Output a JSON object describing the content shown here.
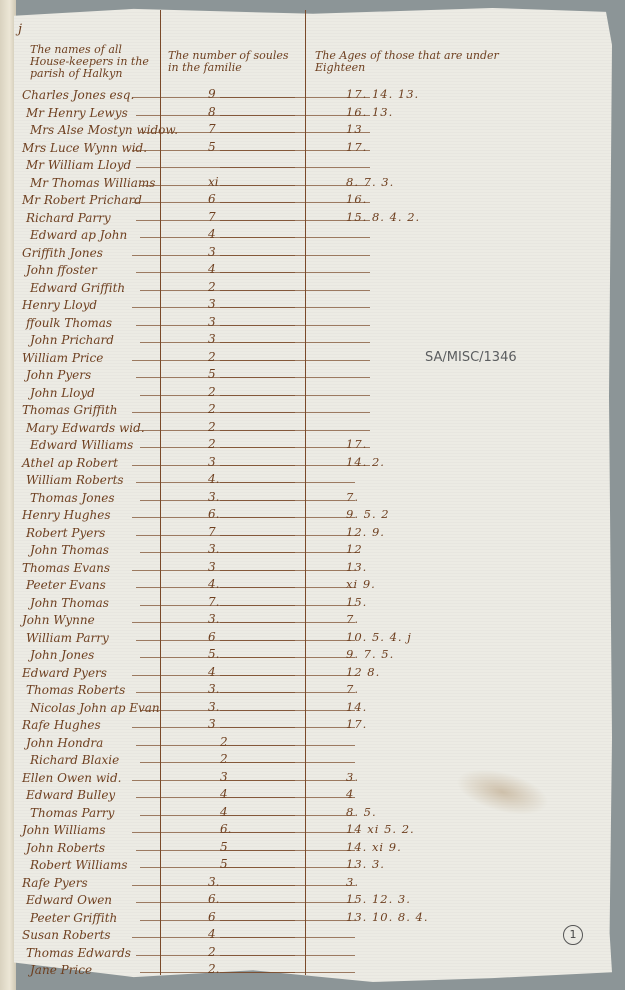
{
  "document": {
    "leaf_mark": "j",
    "headers": {
      "names": "The names of all House-keepers in the parish of Halkyn",
      "souls": "The number of soules in the familie",
      "ages": "The Ages of those that are under Eighteen"
    },
    "archive_reference": "SA/MISC/1346",
    "folio_number": "1",
    "rows": [
      {
        "name": "Charles Jones esq.",
        "souls": "9",
        "ages": "17. 14. 13."
      },
      {
        "name": "Mr Henry Lewys",
        "souls": "8",
        "ages": "16. 13."
      },
      {
        "name": "Mrs Alse Mostyn widow.",
        "souls": "7",
        "ages": "13"
      },
      {
        "name": "Mrs Luce Wynn wid.",
        "souls": "5",
        "ages": "17."
      },
      {
        "name": "Mr William Lloyd",
        "souls": "",
        "ages": ""
      },
      {
        "name": "Mr Thomas Williams",
        "souls": "xi",
        "ages": "8. 7. 3."
      },
      {
        "name": "Mr Robert Prichard",
        "souls": "6",
        "ages": "16."
      },
      {
        "name": "Richard Parry",
        "souls": "7",
        "ages": "15. 8. 4. 2."
      },
      {
        "name": "Edward ap John",
        "souls": "4",
        "ages": ""
      },
      {
        "name": "Griffith Jones",
        "souls": "3",
        "ages": ""
      },
      {
        "name": "John ffoster",
        "souls": "4",
        "ages": ""
      },
      {
        "name": "Edward Griffith",
        "souls": "2",
        "ages": ""
      },
      {
        "name": "Henry Lloyd",
        "souls": "3",
        "ages": ""
      },
      {
        "name": "ffoulk Thomas",
        "souls": "3",
        "ages": ""
      },
      {
        "name": "John Prichard",
        "souls": "3",
        "ages": ""
      },
      {
        "name": "William Price",
        "souls": "2",
        "ages": ""
      },
      {
        "name": "John Pyers",
        "souls": "5",
        "ages": ""
      },
      {
        "name": "John Lloyd",
        "souls": "2",
        "ages": ""
      },
      {
        "name": "Thomas Griffith",
        "souls": "2",
        "ages": ""
      },
      {
        "name": "Mary Edwards wid.",
        "souls": "2",
        "ages": ""
      },
      {
        "name": "Edward Williams",
        "souls": "2",
        "ages": "17."
      },
      {
        "name": "Athel ap Robert",
        "souls": "3",
        "ages": "14. 2."
      },
      {
        "name": "William Roberts",
        "souls": "4.",
        "ages": ""
      },
      {
        "name": "Thomas Jones",
        "souls": "3.",
        "ages": "7."
      },
      {
        "name": "Henry Hughes",
        "souls": "6.",
        "ages": "9. 5. 2"
      },
      {
        "name": "Robert Pyers",
        "souls": "7",
        "ages": "12. 9."
      },
      {
        "name": "John Thomas",
        "souls": "3.",
        "ages": "12"
      },
      {
        "name": "Thomas Evans",
        "souls": "3",
        "ages": "13."
      },
      {
        "name": "Peeter Evans",
        "souls": "4.",
        "ages": "xi 9."
      },
      {
        "name": "John Thomas",
        "souls": "7.",
        "ages": "15."
      },
      {
        "name": "John Wynne",
        "souls": "3.",
        "ages": "7."
      },
      {
        "name": "William Parry",
        "souls": "6",
        "ages": "10. 5. 4. j"
      },
      {
        "name": "John Jones",
        "souls": "5.",
        "ages": "9. 7. 5."
      },
      {
        "name": "Edward Pyers",
        "souls": "4",
        "ages": "12 8."
      },
      {
        "name": "Thomas Roberts",
        "souls": "3.",
        "ages": "7."
      },
      {
        "name": "Nicolas John ap Evan",
        "souls": "3.",
        "ages": "14."
      },
      {
        "name": "Rafe Hughes",
        "souls": "3",
        "ages": "17."
      },
      {
        "name": "John Hondra",
        "souls": "2",
        "ages": ""
      },
      {
        "name": "Richard Blaxie",
        "souls": "2",
        "ages": ""
      },
      {
        "name": "Ellen Owen wid.",
        "souls": "3",
        "ages": "3."
      },
      {
        "name": "Edward Bulley",
        "souls": "4",
        "ages": "4"
      },
      {
        "name": "Thomas Parry",
        "souls": "4",
        "ages": "8. 5."
      },
      {
        "name": "John Williams",
        "souls": "6.",
        "ages": "14 xi 5. 2."
      },
      {
        "name": "John Roberts",
        "souls": "5",
        "ages": "14. xi 9."
      },
      {
        "name": "Robert Williams",
        "souls": "5",
        "ages": "13. 3."
      },
      {
        "name": "Rafe Pyers",
        "souls": "3.",
        "ages": "3."
      },
      {
        "name": "Edward Owen",
        "souls": "6.",
        "ages": "15. 12. 3."
      },
      {
        "name": "Peeter Griffith",
        "souls": "6",
        "ages": "13. 10. 8. 4."
      },
      {
        "name": "Susan Roberts",
        "souls": "4",
        "ages": ""
      },
      {
        "name": "Thomas Edwards",
        "souls": "2",
        "ages": ""
      },
      {
        "name": "Jane Price",
        "souls": "2.",
        "ages": ""
      }
    ]
  },
  "colors": {
    "ink": "#6e3f1f",
    "paper": "#ecebe4",
    "background": "#8c9597",
    "pencil": "#5b5d5f"
  }
}
